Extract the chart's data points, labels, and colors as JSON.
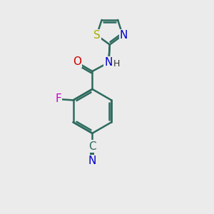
{
  "background_color": "#ebebeb",
  "bond_color": "#2d6b5e",
  "bond_width": 1.8,
  "atom_colors": {
    "O": "#cc0000",
    "N": "#0000cc",
    "F": "#cc00cc",
    "S": "#aaaa00",
    "C": "#2d6b5e",
    "H": "#333333"
  },
  "font_size": 11,
  "font_size_small": 9
}
